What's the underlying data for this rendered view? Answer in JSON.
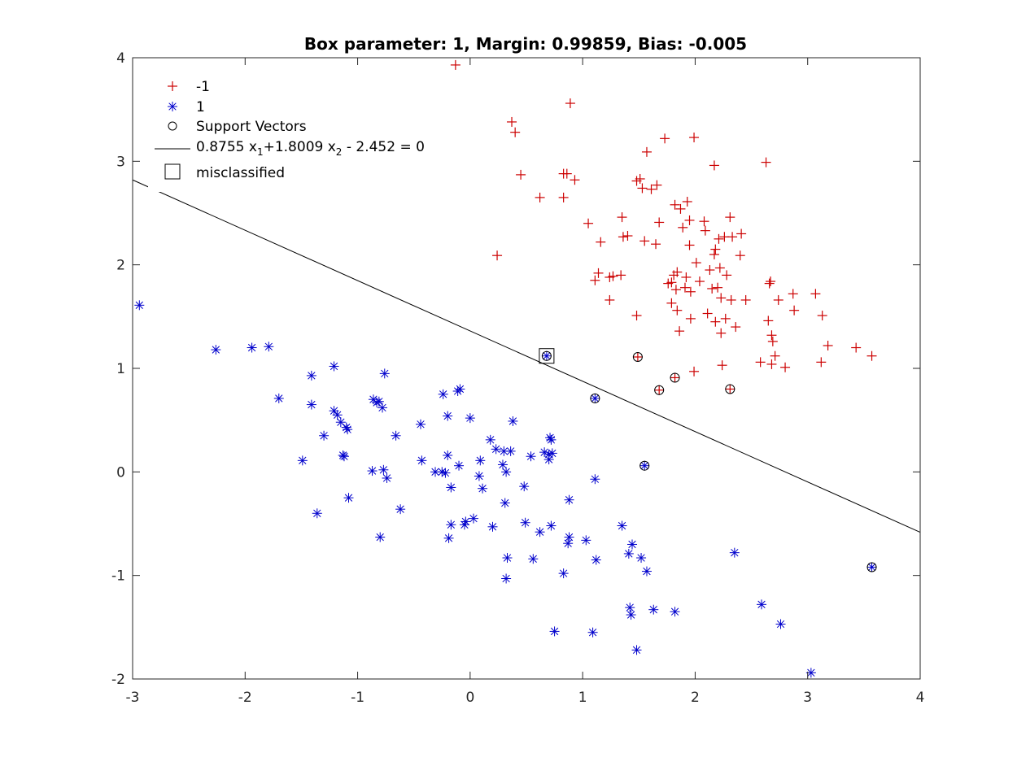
{
  "chart_data": {
    "type": "scatter",
    "title": "Box parameter: 1, Margin: 0.99859, Bias: -0.005",
    "xlabel": "",
    "ylabel": "",
    "xlim": [
      -3,
      4
    ],
    "ylim": [
      -2,
      4
    ],
    "xticks": [
      -3,
      -2,
      -1,
      0,
      1,
      2,
      3,
      4
    ],
    "yticks": [
      -2,
      -1,
      0,
      1,
      2,
      3,
      4
    ],
    "xtick_labels": [
      "-3",
      "-2",
      "-1",
      "0",
      "1",
      "2",
      "3",
      "4"
    ],
    "ytick_labels": [
      "-2",
      "-1",
      "0",
      "1",
      "2",
      "3",
      "4"
    ],
    "grid": false,
    "legend_position": "top-left",
    "legend": {
      "neg_label": "-1",
      "pos_label": "1",
      "sv_label": "Support Vectors",
      "line_label_main": "0.8755 x",
      "line_label_sub1": "1",
      "line_label_mid": "+1.8009 x",
      "line_label_sub2": "2",
      "line_label_end": " - 2.452 = 0",
      "misclassified_label": "misclassified"
    },
    "colors": {
      "neg": "#cc0000",
      "pos": "#0000cc",
      "line": "#000000",
      "sv": "#000000"
    },
    "decision_boundary": {
      "w1": 0.8755,
      "w2": 1.8009,
      "c": 2.452,
      "x_range": [
        -3,
        4
      ]
    },
    "series": [
      {
        "name": "-1",
        "marker": "plus",
        "points": [
          [
            -0.13,
            3.93
          ],
          [
            0.37,
            3.38
          ],
          [
            0.4,
            3.28
          ],
          [
            0.89,
            3.56
          ],
          [
            0.45,
            2.87
          ],
          [
            0.83,
            2.88
          ],
          [
            0.86,
            2.88
          ],
          [
            0.93,
            2.82
          ],
          [
            0.62,
            2.65
          ],
          [
            0.83,
            2.65
          ],
          [
            0.24,
            2.09
          ],
          [
            1.05,
            2.4
          ],
          [
            1.11,
            1.85
          ],
          [
            1.14,
            1.92
          ],
          [
            1.16,
            2.22
          ],
          [
            1.24,
            1.88
          ],
          [
            1.24,
            1.66
          ],
          [
            1.27,
            1.89
          ],
          [
            1.34,
            1.9
          ],
          [
            1.35,
            2.46
          ],
          [
            1.36,
            2.27
          ],
          [
            1.4,
            2.28
          ],
          [
            1.48,
            2.81
          ],
          [
            1.48,
            1.51
          ],
          [
            1.51,
            2.83
          ],
          [
            1.53,
            2.74
          ],
          [
            1.55,
            2.23
          ],
          [
            1.57,
            3.09
          ],
          [
            1.61,
            2.73
          ],
          [
            1.65,
            2.2
          ],
          [
            1.66,
            2.77
          ],
          [
            1.68,
            2.41
          ],
          [
            1.73,
            3.22
          ],
          [
            1.76,
            1.82
          ],
          [
            1.79,
            1.83
          ],
          [
            1.79,
            1.63
          ],
          [
            1.81,
            1.9
          ],
          [
            1.82,
            2.58
          ],
          [
            1.83,
            1.76
          ],
          [
            1.84,
            1.93
          ],
          [
            1.84,
            1.56
          ],
          [
            1.86,
            1.36
          ],
          [
            1.87,
            2.54
          ],
          [
            1.89,
            2.36
          ],
          [
            1.91,
            1.78
          ],
          [
            1.92,
            1.88
          ],
          [
            1.93,
            2.61
          ],
          [
            1.95,
            2.43
          ],
          [
            1.95,
            2.19
          ],
          [
            1.96,
            1.48
          ],
          [
            1.96,
            1.74
          ],
          [
            1.99,
            3.23
          ],
          [
            1.99,
            0.97
          ],
          [
            2.01,
            2.02
          ],
          [
            2.04,
            1.84
          ],
          [
            2.08,
            2.42
          ],
          [
            2.09,
            2.33
          ],
          [
            2.11,
            1.53
          ],
          [
            2.13,
            1.95
          ],
          [
            2.15,
            1.77
          ],
          [
            2.17,
            2.96
          ],
          [
            2.17,
            2.1
          ],
          [
            2.18,
            2.15
          ],
          [
            2.18,
            1.45
          ],
          [
            2.2,
            1.78
          ],
          [
            2.21,
            2.25
          ],
          [
            2.22,
            1.97
          ],
          [
            2.23,
            1.68
          ],
          [
            2.23,
            1.34
          ],
          [
            2.24,
            1.03
          ],
          [
            2.26,
            2.27
          ],
          [
            2.27,
            1.48
          ],
          [
            2.28,
            1.9
          ],
          [
            2.31,
            2.46
          ],
          [
            2.32,
            1.66
          ],
          [
            2.33,
            2.27
          ],
          [
            2.36,
            1.4
          ],
          [
            2.4,
            2.09
          ],
          [
            2.41,
            2.3
          ],
          [
            2.45,
            1.66
          ],
          [
            2.58,
            1.06
          ],
          [
            2.63,
            2.99
          ],
          [
            2.65,
            1.46
          ],
          [
            2.66,
            1.82
          ],
          [
            2.67,
            1.84
          ],
          [
            2.68,
            1.04
          ],
          [
            2.68,
            1.32
          ],
          [
            2.69,
            1.26
          ],
          [
            2.71,
            1.12
          ],
          [
            2.74,
            1.66
          ],
          [
            2.8,
            1.01
          ],
          [
            2.87,
            1.72
          ],
          [
            2.88,
            1.56
          ],
          [
            3.07,
            1.72
          ],
          [
            3.12,
            1.06
          ],
          [
            3.13,
            1.51
          ],
          [
            3.18,
            1.22
          ],
          [
            3.43,
            1.2
          ],
          [
            3.57,
            1.12
          ],
          [
            1.49,
            1.11
          ],
          [
            1.68,
            0.79
          ],
          [
            1.82,
            0.91
          ],
          [
            2.31,
            0.8
          ]
        ]
      },
      {
        "name": "1",
        "marker": "asterisk",
        "points": [
          [
            -2.94,
            1.61
          ],
          [
            -2.26,
            1.18
          ],
          [
            -1.94,
            1.2
          ],
          [
            -1.79,
            1.21
          ],
          [
            -1.7,
            0.71
          ],
          [
            -1.49,
            0.11
          ],
          [
            -1.41,
            0.93
          ],
          [
            -1.41,
            0.65
          ],
          [
            -1.36,
            -0.4
          ],
          [
            -1.3,
            0.35
          ],
          [
            -1.21,
            1.02
          ],
          [
            -1.21,
            0.59
          ],
          [
            -1.18,
            0.55
          ],
          [
            -1.15,
            0.48
          ],
          [
            -1.13,
            0.16
          ],
          [
            -1.12,
            0.15
          ],
          [
            -1.1,
            0.43
          ],
          [
            -1.09,
            0.41
          ],
          [
            -1.08,
            -0.25
          ],
          [
            -0.87,
            0.01
          ],
          [
            -0.86,
            0.7
          ],
          [
            -0.83,
            0.67
          ],
          [
            -0.81,
            0.68
          ],
          [
            -0.8,
            -0.63
          ],
          [
            -0.78,
            0.62
          ],
          [
            -0.77,
            0.02
          ],
          [
            -0.76,
            0.95
          ],
          [
            -0.74,
            -0.06
          ],
          [
            -0.66,
            0.35
          ],
          [
            -0.62,
            -0.36
          ],
          [
            -0.44,
            0.46
          ],
          [
            -0.43,
            0.11
          ],
          [
            -0.31,
            0.0
          ],
          [
            -0.25,
            0.0
          ],
          [
            -0.24,
            0.75
          ],
          [
            -0.22,
            -0.01
          ],
          [
            -0.2,
            0.54
          ],
          [
            -0.2,
            0.16
          ],
          [
            -0.19,
            -0.64
          ],
          [
            -0.17,
            -0.15
          ],
          [
            -0.17,
            -0.51
          ],
          [
            -0.11,
            0.78
          ],
          [
            -0.1,
            0.06
          ],
          [
            -0.09,
            0.8
          ],
          [
            -0.05,
            -0.51
          ],
          [
            -0.04,
            -0.48
          ],
          [
            0.0,
            0.52
          ],
          [
            0.03,
            -0.45
          ],
          [
            0.08,
            -0.04
          ],
          [
            0.09,
            0.11
          ],
          [
            0.11,
            -0.16
          ],
          [
            0.18,
            0.31
          ],
          [
            0.2,
            -0.53
          ],
          [
            0.23,
            0.22
          ],
          [
            0.29,
            0.07
          ],
          [
            0.3,
            0.2
          ],
          [
            0.31,
            -0.3
          ],
          [
            0.32,
            0.0
          ],
          [
            0.32,
            -1.03
          ],
          [
            0.33,
            -0.83
          ],
          [
            0.36,
            0.2
          ],
          [
            0.38,
            0.49
          ],
          [
            0.48,
            -0.14
          ],
          [
            0.49,
            -0.49
          ],
          [
            0.54,
            0.15
          ],
          [
            0.56,
            -0.84
          ],
          [
            0.62,
            -0.58
          ],
          [
            0.66,
            0.19
          ],
          [
            0.7,
            0.17
          ],
          [
            0.7,
            0.12
          ],
          [
            0.71,
            0.33
          ],
          [
            0.72,
            0.31
          ],
          [
            0.72,
            -0.52
          ],
          [
            0.73,
            0.18
          ],
          [
            0.75,
            -1.54
          ],
          [
            0.83,
            -0.98
          ],
          [
            0.87,
            -0.69
          ],
          [
            0.88,
            -0.27
          ],
          [
            0.88,
            -0.63
          ],
          [
            1.03,
            -0.66
          ],
          [
            1.09,
            -1.55
          ],
          [
            1.11,
            -0.07
          ],
          [
            1.12,
            -0.85
          ],
          [
            1.35,
            -0.52
          ],
          [
            1.41,
            -0.79
          ],
          [
            1.42,
            -1.31
          ],
          [
            1.43,
            -1.38
          ],
          [
            1.44,
            -0.7
          ],
          [
            1.48,
            -1.72
          ],
          [
            1.52,
            -0.83
          ],
          [
            1.57,
            -0.96
          ],
          [
            1.63,
            -1.33
          ],
          [
            1.82,
            -1.35
          ],
          [
            2.35,
            -0.78
          ],
          [
            2.59,
            -1.28
          ],
          [
            2.76,
            -1.47
          ],
          [
            3.03,
            -1.94
          ],
          [
            0.68,
            1.12
          ],
          [
            1.11,
            0.71
          ],
          [
            1.55,
            0.06
          ],
          [
            3.57,
            -0.92
          ]
        ]
      }
    ],
    "support_vectors": [
      [
        0.68,
        1.12
      ],
      [
        1.11,
        0.71
      ],
      [
        1.49,
        1.11
      ],
      [
        1.55,
        0.06
      ],
      [
        1.68,
        0.79
      ],
      [
        1.82,
        0.91
      ],
      [
        2.31,
        0.8
      ],
      [
        3.57,
        -0.92
      ]
    ],
    "misclassified": [
      [
        0.68,
        1.12
      ]
    ]
  }
}
